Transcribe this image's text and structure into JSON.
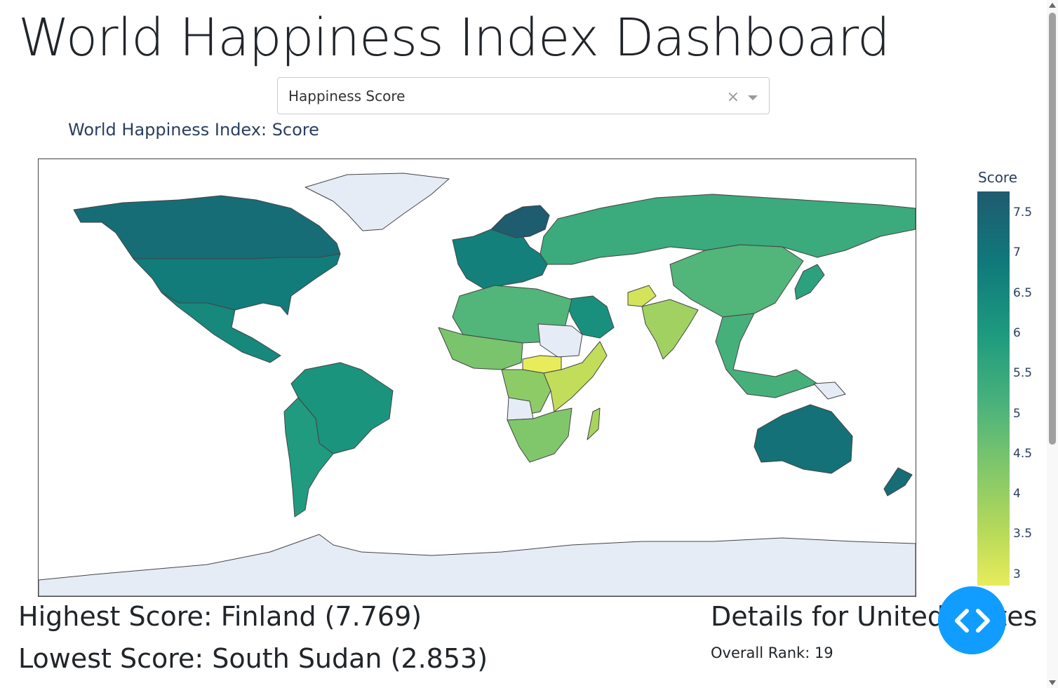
{
  "header": {
    "title": "World Happiness Index Dashboard"
  },
  "dropdown": {
    "value": "Happiness Score",
    "clear_symbol": "×"
  },
  "map": {
    "title": "World Happiness Index: Score",
    "colorscale": [
      "#e8ec5b",
      "#b6d95a",
      "#80c76b",
      "#4ab27b",
      "#1d9a7f",
      "#10797a",
      "#1f5b70"
    ],
    "missing_color": "#e5ecf6",
    "regions": [
      {
        "name": "Greenland",
        "score": null
      },
      {
        "name": "Antarctica",
        "score": null
      },
      {
        "name": "Canada",
        "score": 7.3
      },
      {
        "name": "United States",
        "score": 6.9
      },
      {
        "name": "Mexico",
        "score": 6.6
      },
      {
        "name": "Brazil",
        "score": 6.3
      },
      {
        "name": "Argentina",
        "score": 6.1
      },
      {
        "name": "Europe",
        "score": 6.8
      },
      {
        "name": "Finland",
        "score": 7.769
      },
      {
        "name": "Russia",
        "score": 5.6
      },
      {
        "name": "China",
        "score": 5.2
      },
      {
        "name": "India",
        "score": 4.0
      },
      {
        "name": "Afghanistan",
        "score": 3.2
      },
      {
        "name": "Saudi Arabia",
        "score": 6.4
      },
      {
        "name": "North Africa",
        "score": 5.2
      },
      {
        "name": "West Africa",
        "score": 4.6
      },
      {
        "name": "Sudan",
        "score": null
      },
      {
        "name": "South Sudan",
        "score": 2.853
      },
      {
        "name": "East Africa",
        "score": 3.5
      },
      {
        "name": "Central Africa",
        "score": 4.3
      },
      {
        "name": "Angola",
        "score": null
      },
      {
        "name": "Southern Africa",
        "score": 4.5
      },
      {
        "name": "Madagascar",
        "score": 3.9
      },
      {
        "name": "Southeast Asia",
        "score": 5.4
      },
      {
        "name": "Japan",
        "score": 5.9
      },
      {
        "name": "Papua New Guinea",
        "score": null
      },
      {
        "name": "Australia",
        "score": 7.2
      },
      {
        "name": "New Zealand",
        "score": 7.3
      }
    ]
  },
  "colorbar": {
    "title": "Score",
    "ticks": [
      "7.5",
      "7",
      "6.5",
      "6",
      "5.5",
      "5",
      "4.5",
      "4",
      "3.5",
      "3"
    ]
  },
  "stats": {
    "highest": "Highest Score: Finland (7.769)",
    "lowest": "Lowest Score: South Sudan (2.853)"
  },
  "details": {
    "title": "Details for United States",
    "rank": "Overall Rank: 19"
  },
  "fab": {
    "icon": "code-icon"
  }
}
